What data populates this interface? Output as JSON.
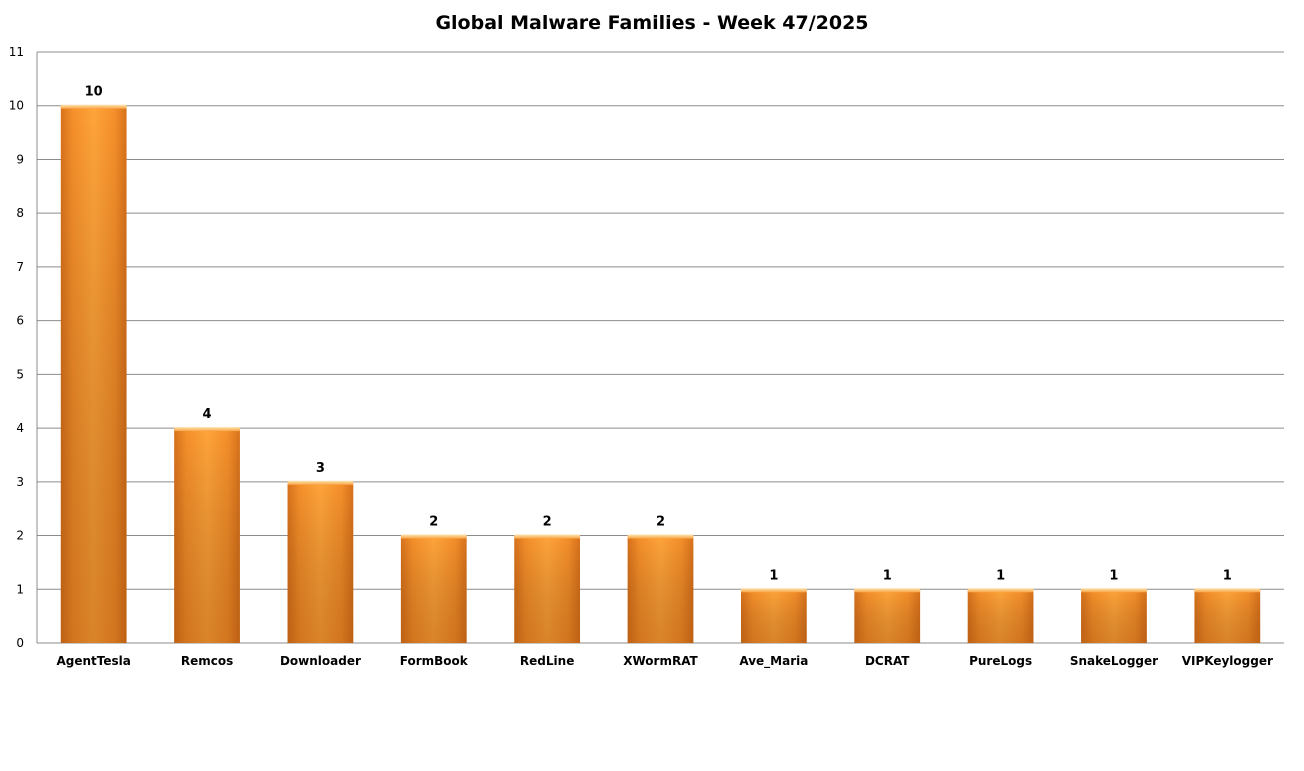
{
  "chart_data": {
    "type": "bar",
    "title": "Global Malware Families - Week 47/2025",
    "xlabel": "",
    "ylabel": "",
    "categories": [
      "AgentTesla",
      "Remcos",
      "Downloader",
      "FormBook",
      "RedLine",
      "XWormRAT",
      "Ave_Maria",
      "DCRAT",
      "PureLogs",
      "SnakeLogger",
      "VIPKeylogger"
    ],
    "values": [
      10,
      4,
      3,
      2,
      2,
      2,
      1,
      1,
      1,
      1,
      1
    ],
    "ylim": [
      0,
      11
    ],
    "yticks": [
      "0",
      "1",
      "2",
      "3",
      "4",
      "5",
      "6",
      "7",
      "8",
      "9",
      "10",
      "11"
    ],
    "data_labels": [
      "10",
      "4",
      "3",
      "2",
      "2",
      "2",
      "1",
      "1",
      "1",
      "1",
      "1"
    ],
    "grid": true,
    "legend": "none",
    "colors": {
      "bar_light": "#FFA43A",
      "bar_mid": "#F28A24",
      "bar_dark": "#C65F12",
      "grid": "#8C8C8C",
      "axis": "#8C8C8C",
      "text": "#000000"
    }
  }
}
